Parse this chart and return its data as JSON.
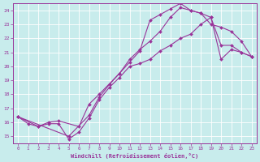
{
  "xlabel": "Windchill (Refroidissement éolien,°C)",
  "bg_color": "#c8ecec",
  "line_color": "#993399",
  "grid_color": "#ffffff",
  "xlim": [
    -0.5,
    23.5
  ],
  "ylim": [
    14.5,
    24.5
  ],
  "xticks": [
    0,
    1,
    2,
    3,
    4,
    5,
    6,
    7,
    8,
    9,
    10,
    11,
    12,
    13,
    14,
    15,
    16,
    17,
    18,
    19,
    20,
    21,
    22,
    23
  ],
  "yticks": [
    15,
    16,
    17,
    18,
    19,
    20,
    21,
    22,
    23,
    24
  ],
  "line1_x": [
    0,
    1,
    2,
    3,
    4,
    5,
    6,
    7,
    8,
    9,
    10,
    11,
    12,
    13,
    14,
    15,
    16,
    17,
    18,
    19,
    20,
    21,
    22,
    23
  ],
  "line1_y": [
    16.4,
    15.9,
    15.7,
    15.9,
    15.9,
    14.8,
    15.3,
    16.3,
    17.6,
    18.5,
    19.2,
    20.0,
    20.2,
    20.5,
    21.1,
    21.5,
    22.0,
    22.3,
    23.0,
    23.5,
    20.5,
    21.2,
    21.0,
    20.7
  ],
  "line2_x": [
    0,
    2,
    3,
    4,
    6,
    7,
    8,
    10,
    11,
    12,
    13,
    14,
    15,
    16,
    17,
    18,
    19,
    20,
    21,
    22,
    23
  ],
  "line2_y": [
    16.4,
    15.7,
    16.0,
    16.1,
    15.7,
    17.3,
    18.0,
    19.5,
    20.3,
    21.1,
    23.3,
    23.7,
    24.1,
    24.5,
    24.0,
    23.8,
    23.0,
    22.8,
    22.5,
    21.8,
    20.7
  ],
  "line3_x": [
    0,
    5,
    7,
    8,
    9,
    10,
    11,
    12,
    13,
    14,
    15,
    16,
    17,
    18,
    19,
    20,
    21,
    22,
    23
  ],
  "line3_y": [
    16.4,
    15.0,
    16.5,
    17.8,
    18.7,
    19.5,
    20.5,
    21.2,
    21.8,
    22.5,
    23.5,
    24.2,
    24.0,
    23.8,
    23.5,
    21.5,
    21.5,
    21.0,
    20.7
  ]
}
